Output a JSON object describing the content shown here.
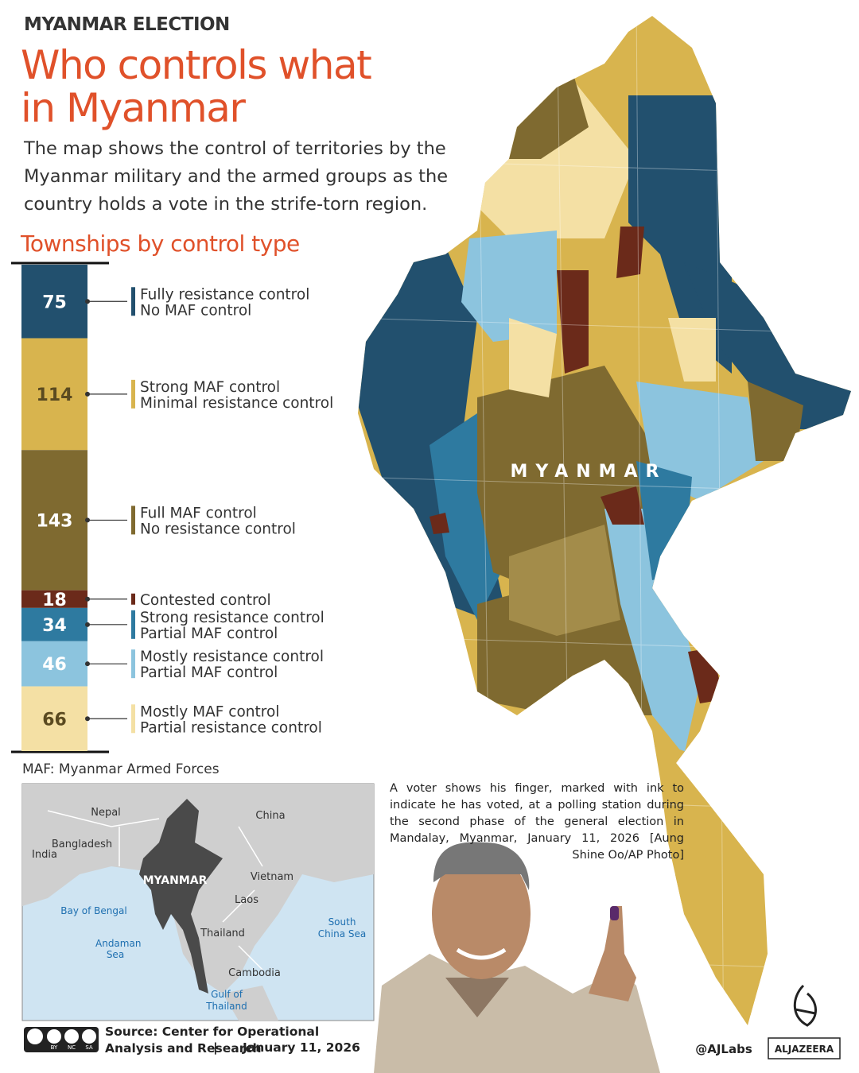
{
  "header": {
    "kicker": "MYANMAR ELECTION",
    "title_lines": [
      "Who controls what",
      "in Myanmar"
    ],
    "description": "The map shows the control of territories by the Myanmar military and the armed groups as the country holds a vote in the strife-torn region."
  },
  "chart_data": {
    "type": "stacked-bar",
    "title": "Townships by control type",
    "series": [
      {
        "name": "Fully resistance control",
        "note": "No MAF control",
        "values": [
          75
        ],
        "color": "#22506e",
        "text_color": "#ffffff"
      },
      {
        "name": "Strong MAF control",
        "note": "Minimal resistance control",
        "values": [
          114
        ],
        "color": "#d8b44e",
        "text_color": "#5a4a20"
      },
      {
        "name": "Full MAF control",
        "note": "No resistance control",
        "values": [
          143
        ],
        "color": "#7f6a30",
        "text_color": "#ffffff"
      },
      {
        "name": "Contested control",
        "values": [
          18
        ],
        "color": "#6b2a1a",
        "text_color": "#ffffff"
      },
      {
        "name": "Strong resistance control",
        "note": "Partial MAF control",
        "values": [
          34
        ],
        "color": "#2e7aa0",
        "text_color": "#ffffff"
      },
      {
        "name": "Mostly resistance control",
        "note": "Partial MAF control",
        "values": [
          46
        ],
        "color": "#8cc4de",
        "text_color": "#ffffff"
      },
      {
        "name": "Mostly MAF control",
        "note": "Partial resistance control",
        "values": [
          66
        ],
        "color": "#f4e0a4",
        "text_color": "#5a4a20"
      }
    ]
  },
  "footnote": "MAF: Myanmar Armed Forces",
  "map": {
    "label": "MYANMAR"
  },
  "inset": {
    "labels": [
      "Nepal",
      "China",
      "Bangladesh",
      "India",
      "MYANMAR",
      "Vietnam",
      "Laos",
      "Thailand",
      "Cambodia"
    ],
    "sea_labels": [
      "Bay of Bengal",
      "Andaman Sea",
      "South China Sea",
      "Gulf of Thailand"
    ]
  },
  "caption": "A voter shows his finger, marked with ink to indicate he has voted, at a polling station during the second phase of the general election in Mandalay, Myanmar, January 11, 2026 [Aung Shine Oo/AP Photo]",
  "footer": {
    "license": [
      "BY",
      "NC",
      "SA"
    ],
    "source": "Source: Center for Operational Analysis and Research",
    "separator": "|",
    "date": "January 11, 2026",
    "handle": "@AJLabs",
    "brand": "ALJAZEERA"
  }
}
